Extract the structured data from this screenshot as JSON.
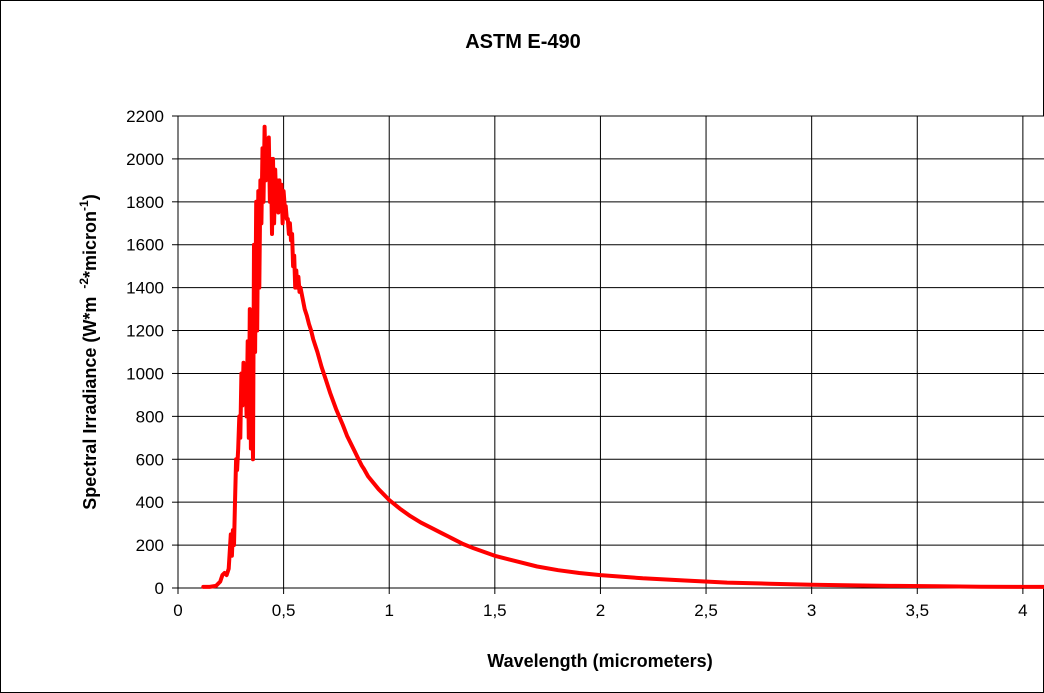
{
  "chart_data": {
    "type": "line",
    "title": "ASTM E-490",
    "xlabel": "Wavelength (micrometers)",
    "ylabel": {
      "base": "Spectral Irradiance (W*m",
      "exp1": "-2",
      "mid": "*micron",
      "exp2": "-1",
      "end": ")"
    },
    "xlim": [
      0,
      4.1
    ],
    "ylim": [
      0,
      2200
    ],
    "x_ticks": [
      0,
      0.5,
      1,
      1.5,
      2,
      2.5,
      3,
      3.5,
      4
    ],
    "x_tick_labels": [
      "0",
      "0,5",
      "1",
      "1,5",
      "2",
      "2,5",
      "3",
      "3,5",
      "4"
    ],
    "y_ticks": [
      0,
      200,
      400,
      600,
      800,
      1000,
      1200,
      1400,
      1600,
      1800,
      2000,
      2200
    ],
    "y_tick_labels": [
      "0",
      "200",
      "400",
      "600",
      "800",
      "1000",
      "1200",
      "1400",
      "1600",
      "1800",
      "2000",
      "2200"
    ],
    "grid": true,
    "legend": "none",
    "line_color": "#FF0000",
    "series": [
      {
        "x": [
          0.12,
          0.15,
          0.18,
          0.2,
          0.21,
          0.22,
          0.23,
          0.24,
          0.25,
          0.255,
          0.26,
          0.265,
          0.27,
          0.275,
          0.28,
          0.285,
          0.29,
          0.295,
          0.3,
          0.305,
          0.31,
          0.315,
          0.32,
          0.325,
          0.33,
          0.335,
          0.34,
          0.345,
          0.35,
          0.355,
          0.36,
          0.365,
          0.37,
          0.375,
          0.38,
          0.385,
          0.39,
          0.395,
          0.4,
          0.405,
          0.41,
          0.415,
          0.42,
          0.425,
          0.43,
          0.435,
          0.44,
          0.445,
          0.45,
          0.455,
          0.46,
          0.465,
          0.47,
          0.475,
          0.48,
          0.485,
          0.49,
          0.495,
          0.5,
          0.505,
          0.51,
          0.515,
          0.52,
          0.525,
          0.53,
          0.535,
          0.54,
          0.545,
          0.55,
          0.555,
          0.56,
          0.565,
          0.57,
          0.575,
          0.58,
          0.59,
          0.6,
          0.61,
          0.62,
          0.63,
          0.64,
          0.65,
          0.66,
          0.68,
          0.7,
          0.72,
          0.75,
          0.78,
          0.8,
          0.82,
          0.84,
          0.85,
          0.86,
          0.87,
          0.88,
          0.9,
          0.95,
          1.0,
          1.05,
          1.1,
          1.15,
          1.2,
          1.25,
          1.28,
          1.3,
          1.35,
          1.4,
          1.5,
          1.6,
          1.7,
          1.8,
          1.9,
          2.0,
          2.2,
          2.4,
          2.6,
          2.8,
          3.0,
          3.2,
          3.4,
          3.6,
          3.8,
          4.0,
          4.1
        ],
        "y": [
          5,
          5,
          10,
          30,
          60,
          70,
          60,
          90,
          250,
          150,
          270,
          200,
          400,
          600,
          550,
          650,
          800,
          700,
          1000,
          850,
          1050,
          900,
          1000,
          800,
          1150,
          700,
          1300,
          650,
          1100,
          600,
          1600,
          1100,
          1800,
          1200,
          1850,
          1400,
          1900,
          1700,
          2050,
          1800,
          2150,
          1900,
          2050,
          2000,
          2100,
          1800,
          2000,
          1650,
          2000,
          1700,
          1950,
          1800,
          1900,
          1750,
          1900,
          1800,
          1880,
          1700,
          1850,
          1780,
          1780,
          1720,
          1720,
          1650,
          1700,
          1620,
          1650,
          1500,
          1550,
          1400,
          1480,
          1400,
          1450,
          1380,
          1400,
          1350,
          1300,
          1270,
          1230,
          1200,
          1160,
          1130,
          1100,
          1030,
          970,
          910,
          830,
          760,
          710,
          670,
          630,
          610,
          590,
          570,
          555,
          520,
          460,
          410,
          370,
          335,
          305,
          280,
          255,
          240,
          230,
          205,
          185,
          150,
          125,
          100,
          83,
          70,
          60,
          45,
          35,
          25,
          20,
          15,
          12,
          10,
          8,
          6,
          5,
          5
        ]
      }
    ]
  }
}
